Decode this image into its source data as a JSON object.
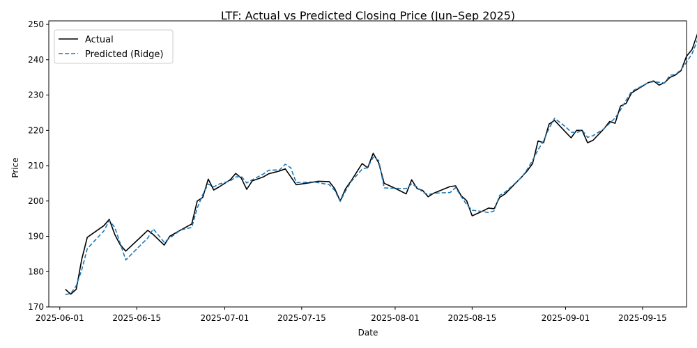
{
  "chart_data": {
    "type": "line",
    "title": "LTF: Actual vs Predicted Closing Price (Jun–Sep 2025)",
    "xlabel": "Date",
    "ylabel": "Price",
    "xlim": [
      "2025-05-30",
      "2025-09-23"
    ],
    "ylim": [
      170,
      251
    ],
    "x_ticks": [
      "2025-06-01",
      "2025-06-15",
      "2025-07-01",
      "2025-07-15",
      "2025-08-01",
      "2025-08-15",
      "2025-09-01",
      "2025-09-15"
    ],
    "y_ticks": [
      170,
      180,
      190,
      200,
      210,
      220,
      230,
      240,
      250
    ],
    "grid": false,
    "legend": {
      "position": "top-left"
    },
    "colors": {
      "actual": "#000000",
      "predicted": "#1f77b4"
    },
    "series": [
      {
        "name": "Actual",
        "style": "solid",
        "points": [
          [
            "2025-06-02",
            175.0
          ],
          [
            "2025-06-03",
            173.6
          ],
          [
            "2025-06-04",
            175.0
          ],
          [
            "2025-06-05",
            183.5
          ],
          [
            "2025-06-06",
            189.7
          ],
          [
            "2025-06-09",
            193.0
          ],
          [
            "2025-06-10",
            194.8
          ],
          [
            "2025-06-11",
            190.5
          ],
          [
            "2025-06-12",
            187.6
          ],
          [
            "2025-06-13",
            185.8
          ],
          [
            "2025-06-16",
            190.2
          ],
          [
            "2025-06-17",
            191.7
          ],
          [
            "2025-06-18",
            190.5
          ],
          [
            "2025-06-20",
            187.5
          ],
          [
            "2025-06-21",
            190.0
          ],
          [
            "2025-06-23",
            191.8
          ],
          [
            "2025-06-25",
            193.5
          ],
          [
            "2025-06-26",
            200.0
          ],
          [
            "2025-06-27",
            201.0
          ],
          [
            "2025-06-28",
            206.2
          ],
          [
            "2025-06-29",
            203.1
          ],
          [
            "2025-06-30",
            204.0
          ],
          [
            "2025-07-02",
            206.0
          ],
          [
            "2025-07-03",
            207.8
          ],
          [
            "2025-07-04",
            206.5
          ],
          [
            "2025-07-05",
            203.3
          ],
          [
            "2025-07-06",
            205.7
          ],
          [
            "2025-07-08",
            206.8
          ],
          [
            "2025-07-09",
            207.7
          ],
          [
            "2025-07-11",
            208.5
          ],
          [
            "2025-07-12",
            209.1
          ],
          [
            "2025-07-13",
            206.9
          ],
          [
            "2025-07-14",
            204.6
          ],
          [
            "2025-07-17",
            205.3
          ],
          [
            "2025-07-18",
            205.6
          ],
          [
            "2025-07-20",
            205.5
          ],
          [
            "2025-07-21",
            203.5
          ],
          [
            "2025-07-22",
            200.0
          ],
          [
            "2025-07-23",
            203.5
          ],
          [
            "2025-07-24",
            205.7
          ],
          [
            "2025-07-26",
            210.6
          ],
          [
            "2025-07-27",
            209.4
          ],
          [
            "2025-07-28",
            213.5
          ],
          [
            "2025-07-29",
            210.8
          ],
          [
            "2025-07-30",
            205.0
          ],
          [
            "2025-08-01",
            203.6
          ],
          [
            "2025-08-03",
            202.0
          ],
          [
            "2025-08-04",
            206.0
          ],
          [
            "2025-08-05",
            203.5
          ],
          [
            "2025-08-06",
            203.0
          ],
          [
            "2025-08-07",
            201.2
          ],
          [
            "2025-08-08",
            202.2
          ],
          [
            "2025-08-11",
            204.1
          ],
          [
            "2025-08-12",
            204.3
          ],
          [
            "2025-08-13",
            201.5
          ],
          [
            "2025-08-14",
            200.1
          ],
          [
            "2025-08-15",
            195.8
          ],
          [
            "2025-08-17",
            197.2
          ],
          [
            "2025-08-18",
            198.0
          ],
          [
            "2025-08-19",
            197.8
          ],
          [
            "2025-08-20",
            201.0
          ],
          [
            "2025-08-21",
            202.0
          ],
          [
            "2025-08-24",
            206.8
          ],
          [
            "2025-08-25",
            208.5
          ],
          [
            "2025-08-26",
            210.6
          ],
          [
            "2025-08-27",
            217.0
          ],
          [
            "2025-08-28",
            216.5
          ],
          [
            "2025-08-29",
            221.8
          ],
          [
            "2025-08-30",
            222.8
          ],
          [
            "2025-09-01",
            219.5
          ],
          [
            "2025-09-02",
            217.9
          ],
          [
            "2025-09-03",
            220.0
          ],
          [
            "2025-09-04",
            220.0
          ],
          [
            "2025-09-05",
            216.5
          ],
          [
            "2025-09-06",
            217.2
          ],
          [
            "2025-09-08",
            220.5
          ],
          [
            "2025-09-09",
            222.5
          ],
          [
            "2025-09-10",
            222.0
          ],
          [
            "2025-09-11",
            226.9
          ],
          [
            "2025-09-12",
            227.6
          ],
          [
            "2025-09-13",
            230.6
          ],
          [
            "2025-09-16",
            233.5
          ],
          [
            "2025-09-17",
            234.0
          ],
          [
            "2025-09-18",
            232.8
          ],
          [
            "2025-09-19",
            233.5
          ],
          [
            "2025-09-20",
            235.0
          ],
          [
            "2025-09-21",
            235.7
          ],
          [
            "2025-09-22",
            236.9
          ],
          [
            "2025-09-23",
            241.0
          ],
          [
            "2025-09-24",
            242.9
          ],
          [
            "2025-09-25",
            247.4
          ]
        ]
      },
      {
        "name": "Predicted (Ridge)",
        "style": "dashed",
        "points": [
          [
            "2025-06-02",
            173.5
          ],
          [
            "2025-06-03",
            173.8
          ],
          [
            "2025-06-04",
            176.0
          ],
          [
            "2025-06-05",
            180.5
          ],
          [
            "2025-06-06",
            186.5
          ],
          [
            "2025-06-09",
            191.5
          ],
          [
            "2025-06-10",
            194.5
          ],
          [
            "2025-06-11",
            192.5
          ],
          [
            "2025-06-12",
            188.0
          ],
          [
            "2025-06-13",
            183.3
          ],
          [
            "2025-06-16",
            188.0
          ],
          [
            "2025-06-17",
            189.5
          ],
          [
            "2025-06-18",
            192.1
          ],
          [
            "2025-06-20",
            188.3
          ],
          [
            "2025-06-21",
            189.5
          ],
          [
            "2025-06-23",
            191.8
          ],
          [
            "2025-06-25",
            192.5
          ],
          [
            "2025-06-26",
            198.0
          ],
          [
            "2025-06-27",
            201.8
          ],
          [
            "2025-06-28",
            204.8
          ],
          [
            "2025-06-29",
            204.0
          ],
          [
            "2025-06-30",
            204.8
          ],
          [
            "2025-07-02",
            205.7
          ],
          [
            "2025-07-03",
            206.8
          ],
          [
            "2025-07-04",
            207.0
          ],
          [
            "2025-07-05",
            205.1
          ],
          [
            "2025-07-06",
            206.0
          ],
          [
            "2025-07-08",
            207.6
          ],
          [
            "2025-07-09",
            208.7
          ],
          [
            "2025-07-11",
            208.8
          ],
          [
            "2025-07-12",
            210.4
          ],
          [
            "2025-07-13",
            209.4
          ],
          [
            "2025-07-14",
            205.2
          ],
          [
            "2025-07-17",
            205.4
          ],
          [
            "2025-07-18",
            205.2
          ],
          [
            "2025-07-20",
            204.6
          ],
          [
            "2025-07-21",
            203.0
          ],
          [
            "2025-07-22",
            199.9
          ],
          [
            "2025-07-23",
            202.9
          ],
          [
            "2025-07-24",
            205.5
          ],
          [
            "2025-07-26",
            209.0
          ],
          [
            "2025-07-27",
            209.5
          ],
          [
            "2025-07-28",
            212.4
          ],
          [
            "2025-07-29",
            211.5
          ],
          [
            "2025-07-30",
            203.7
          ],
          [
            "2025-08-01",
            203.6
          ],
          [
            "2025-08-03",
            203.5
          ],
          [
            "2025-08-04",
            204.8
          ],
          [
            "2025-08-05",
            204.0
          ],
          [
            "2025-08-06",
            202.5
          ],
          [
            "2025-08-07",
            201.8
          ],
          [
            "2025-08-08",
            202.2
          ],
          [
            "2025-08-11",
            202.4
          ],
          [
            "2025-08-12",
            203.8
          ],
          [
            "2025-08-13",
            201.3
          ],
          [
            "2025-08-14",
            199.0
          ],
          [
            "2025-08-15",
            197.4
          ],
          [
            "2025-08-17",
            197.0
          ],
          [
            "2025-08-18",
            196.7
          ],
          [
            "2025-08-19",
            197.2
          ],
          [
            "2025-08-20",
            201.6
          ],
          [
            "2025-08-21",
            202.5
          ],
          [
            "2025-08-24",
            206.7
          ],
          [
            "2025-08-25",
            208.9
          ],
          [
            "2025-08-26",
            211.5
          ],
          [
            "2025-08-27",
            214.5
          ],
          [
            "2025-08-28",
            217.0
          ],
          [
            "2025-08-29",
            220.6
          ],
          [
            "2025-08-30",
            223.4
          ],
          [
            "2025-09-01",
            221.0
          ],
          [
            "2025-09-02",
            219.5
          ],
          [
            "2025-09-03",
            219.3
          ],
          [
            "2025-09-04",
            220.1
          ],
          [
            "2025-09-05",
            218.0
          ],
          [
            "2025-09-06",
            218.5
          ],
          [
            "2025-09-08",
            220.5
          ],
          [
            "2025-09-09",
            222.0
          ],
          [
            "2025-09-10",
            223.5
          ],
          [
            "2025-09-11",
            225.8
          ],
          [
            "2025-09-12",
            228.5
          ],
          [
            "2025-09-13",
            231.0
          ],
          [
            "2025-09-16",
            233.5
          ],
          [
            "2025-09-17",
            233.8
          ],
          [
            "2025-09-18",
            233.6
          ],
          [
            "2025-09-19",
            233.4
          ],
          [
            "2025-09-20",
            235.6
          ],
          [
            "2025-09-21",
            235.8
          ],
          [
            "2025-09-22",
            237.2
          ],
          [
            "2025-09-23",
            239.3
          ],
          [
            "2025-09-24",
            241.7
          ],
          [
            "2025-09-25",
            245.6
          ]
        ]
      }
    ]
  }
}
